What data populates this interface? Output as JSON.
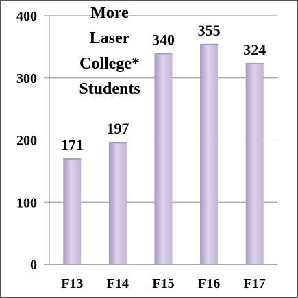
{
  "chart_data": {
    "type": "bar",
    "title": "More Laser College* Students",
    "title_lines": [
      "More",
      "Laser",
      "College*",
      "Students"
    ],
    "categories": [
      "F13",
      "F14",
      "F15",
      "F16",
      "F17"
    ],
    "values": [
      171,
      197,
      340,
      355,
      324
    ],
    "data_labels": [
      "171",
      "197",
      "340",
      "355",
      "324"
    ],
    "y_ticks": [
      "0",
      "100",
      "200",
      "300",
      "400"
    ],
    "ylim": [
      0,
      400
    ],
    "grid": true,
    "legend": "none",
    "colors": {
      "bar": "#c4b5da",
      "bar_highlight": "#ddd3ea",
      "bar_shadow": "#a896c4",
      "grid": "#8c8c8c",
      "frame": "#555555"
    }
  }
}
